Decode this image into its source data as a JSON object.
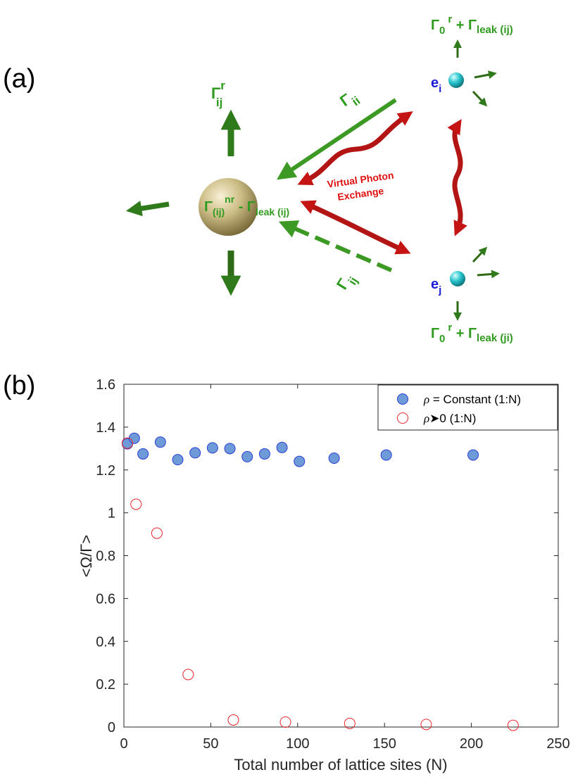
{
  "panel_a": {
    "label": "(a)",
    "gamma_ij_r": {
      "sym": "Γ",
      "sub": "ij",
      "sup": "r"
    },
    "gamma_ii": {
      "sym": "Γ",
      "sub": "ii"
    },
    "gamma_ij": {
      "sym": "Γ",
      "sub": "ij"
    },
    "center_label": {
      "sym1": "Γ",
      "sub1": "(ij)",
      "sup1": "nr",
      "dash": " - ",
      "sym2": "Γ",
      "sub2": "leak (ij)"
    },
    "top_rate": {
      "sym1": "Γ",
      "sub1": "0",
      "sup1": "r",
      "plus": " + ",
      "sym2": "Γ",
      "sub2": "leak (ij)"
    },
    "bottom_rate": {
      "sym1": "Γ",
      "sub1": "0",
      "sup1": "r",
      "plus": " + ",
      "sym2": "Γ",
      "sub2": "leak (ji)"
    },
    "emitter_i": {
      "sym": "e",
      "sub": "i"
    },
    "emitter_j": {
      "sym": "e",
      "sub": "j"
    },
    "virtual_photon_line1": "Virtual Photon",
    "virtual_photon_line2": "Exchange",
    "colors": {
      "green": "#2e9a1e",
      "dark_green": "#2f6b16",
      "red": "#c41414",
      "blue": "#1a1ad6",
      "gold": "#c8b880",
      "cyan": "#20c0c8"
    }
  },
  "panel_b": {
    "label": "(b)"
  },
  "chart_data": {
    "type": "scatter",
    "title": "",
    "xlabel": "Total number of lattice sites (N)",
    "ylabel": "<Ω/Γ>",
    "xlim": [
      0,
      250
    ],
    "ylim": [
      0,
      1.6
    ],
    "x_ticks": [
      "0",
      "50",
      "100",
      "150",
      "200",
      "250"
    ],
    "y_ticks": [
      "0",
      "0.2",
      "0.4",
      "0.6",
      "0.8",
      "1",
      "1.2",
      "1.4",
      "1.6"
    ],
    "legend_position": "top-right",
    "series": [
      {
        "name": "ρ = Constant (1:N)",
        "legend_sym": "ρ",
        "legend_rest": " = Constant (1:N)",
        "marker": "filled-circle",
        "color": "#6f9ad8",
        "edge": "#2a3fd6",
        "x": [
          2,
          6,
          11,
          21,
          31,
          41,
          51,
          61,
          71,
          81,
          91,
          101,
          121,
          151,
          201
        ],
        "y": [
          1.322,
          1.348,
          1.275,
          1.33,
          1.248,
          1.28,
          1.303,
          1.3,
          1.262,
          1.275,
          1.305,
          1.24,
          1.255,
          1.27,
          1.27
        ]
      },
      {
        "name": "ρ ➤0 (1:N)",
        "legend_sym": "ρ",
        "legend_rest": "➤0 (1:N)",
        "marker": "open-circle",
        "color": "#e8262b",
        "x": [
          2,
          7,
          19,
          37,
          63,
          93,
          130,
          174,
          224
        ],
        "y": [
          1.325,
          1.04,
          0.905,
          0.245,
          0.033,
          0.023,
          0.017,
          0.012,
          0.008
        ]
      }
    ]
  }
}
